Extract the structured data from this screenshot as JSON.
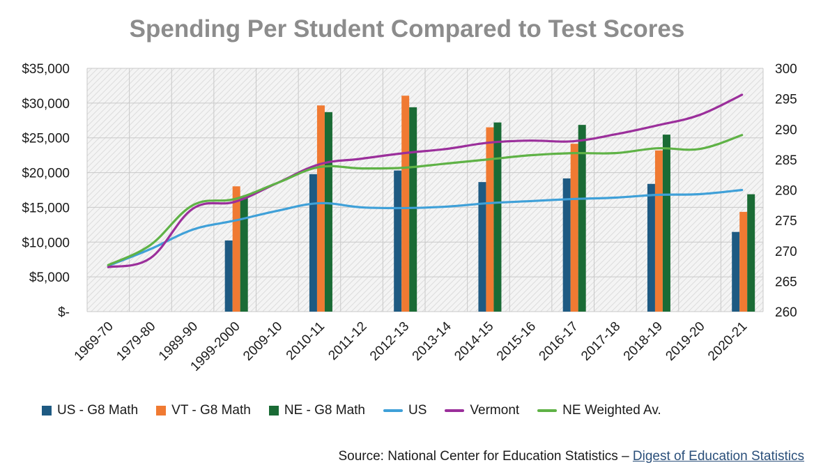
{
  "chart_data": {
    "type": "bar+line",
    "title": "Spending Per Student Compared to Test Scores",
    "categories": [
      "1969-70",
      "1979-80",
      "1989-90",
      "1999-2000",
      "2009-10",
      "2010-11",
      "2011-12",
      "2012-13",
      "2013-14",
      "2014-15",
      "2015-16",
      "2016-17",
      "2017-18",
      "2018-19",
      "2019-20",
      "2020-21"
    ],
    "y_left": {
      "min": 0,
      "max": 35000,
      "ticks": [
        0,
        5000,
        10000,
        15000,
        20000,
        25000,
        30000,
        35000
      ],
      "tick_labels": [
        "$-",
        "$5,000",
        "$10,000",
        "$15,000",
        "$20,000",
        "$25,000",
        "$30,000",
        "$35,000"
      ]
    },
    "y_right": {
      "min": 260,
      "max": 300,
      "ticks": [
        260,
        265,
        270,
        275,
        280,
        285,
        290,
        295,
        300
      ],
      "tick_labels": [
        "260",
        "265",
        "270",
        "275",
        "280",
        "285",
        "290",
        "295",
        "300"
      ]
    },
    "bar_series": [
      {
        "name": "US - G8 Math",
        "color": "#1e5a82",
        "axis": "right",
        "values": [
          null,
          null,
          null,
          271.7,
          null,
          282.6,
          null,
          283.2,
          null,
          281.3,
          null,
          281.9,
          null,
          281.0,
          null,
          273.1
        ]
      },
      {
        "name": "VT - G8 Math",
        "color": "#f07a32",
        "axis": "right",
        "values": [
          null,
          null,
          null,
          280.6,
          null,
          293.9,
          null,
          295.5,
          null,
          290.3,
          null,
          287.6,
          null,
          286.5,
          null,
          276.4
        ]
      },
      {
        "name": "NE - G8 Math",
        "color": "#1a6b35",
        "axis": "right",
        "values": [
          null,
          null,
          null,
          278.8,
          null,
          292.8,
          null,
          293.6,
          null,
          291.1,
          null,
          290.7,
          null,
          289.1,
          null,
          279.3
        ]
      }
    ],
    "line_series": [
      {
        "name": "US",
        "color": "#3fa0d8",
        "axis": "left",
        "values": [
          6600,
          9000,
          11800,
          13100,
          14500,
          15600,
          15000,
          14900,
          15100,
          15600,
          15900,
          16200,
          16400,
          16800,
          16900,
          17500
        ]
      },
      {
        "name": "Vermont",
        "color": "#9b2f9b",
        "axis": "left",
        "values": [
          6400,
          7700,
          14800,
          15800,
          18500,
          21200,
          22000,
          22800,
          23400,
          24300,
          24600,
          24500,
          25500,
          26800,
          28300,
          31200
        ]
      },
      {
        "name": "NE Weighted Av.",
        "color": "#5fb246",
        "axis": "left",
        "values": [
          6700,
          9600,
          15300,
          16200,
          18500,
          20800,
          20600,
          20700,
          21300,
          21900,
          22500,
          22800,
          22800,
          23500,
          23400,
          25400
        ]
      }
    ],
    "grid": true,
    "legend_position": "bottom"
  },
  "legend": [
    {
      "label": "US - G8 Math",
      "color": "#1e5a82",
      "kind": "bar"
    },
    {
      "label": "VT - G8 Math",
      "color": "#f07a32",
      "kind": "bar"
    },
    {
      "label": "NE - G8 Math",
      "color": "#1a6b35",
      "kind": "bar"
    },
    {
      "label": "US",
      "color": "#3fa0d8",
      "kind": "line"
    },
    {
      "label": "Vermont",
      "color": "#9b2f9b",
      "kind": "line"
    },
    {
      "label": "NE Weighted Av.",
      "color": "#5fb246",
      "kind": "line"
    }
  ],
  "source": {
    "prefix": "Source: National Center for Education Statistics – ",
    "link_text": "Digest of Education Statistics"
  }
}
